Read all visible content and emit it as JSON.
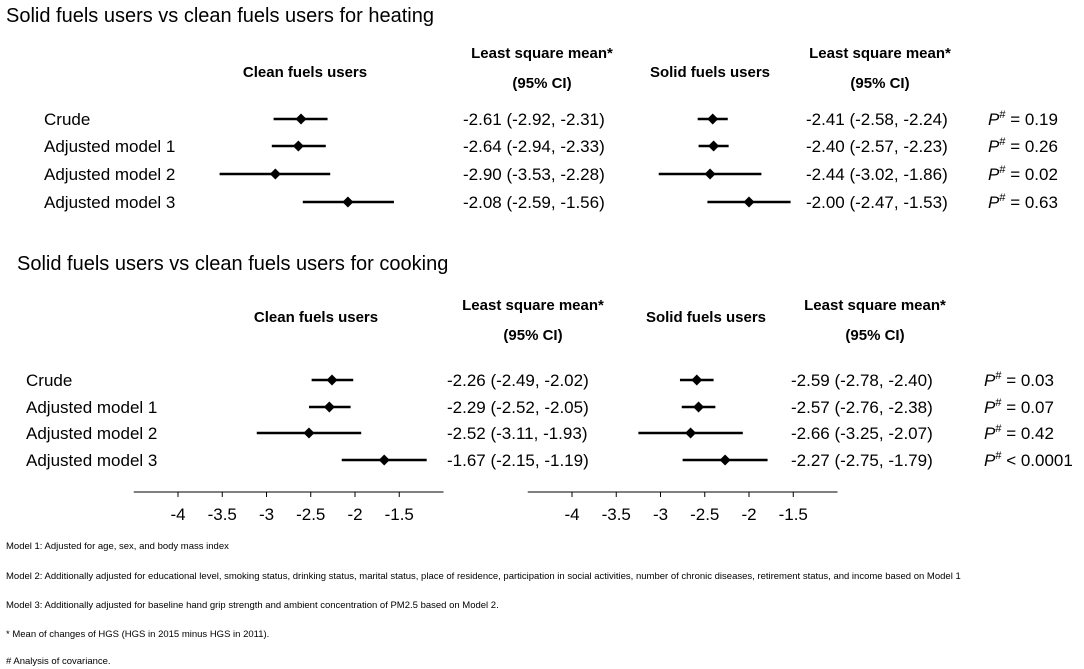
{
  "chart_data": {
    "type": "forest",
    "xlim": [
      -4.5,
      -1.0
    ],
    "xticks": [
      "-4",
      "-3.5",
      "-3",
      "-2.5",
      "-2",
      "-1.5"
    ],
    "xtick_values": [
      -4,
      -3.5,
      -3,
      -2.5,
      -2,
      -1.5
    ],
    "panels": [
      {
        "title": "Solid fuels users vs clean fuels users for heating",
        "headers": {
          "group1": "Clean fuels users",
          "lsm": "Least square mean*",
          "ci": "(95% CI)",
          "group2": "Solid fuels users"
        },
        "rows": [
          {
            "label": "Crude",
            "g1": {
              "mean": -2.61,
              "lo": -2.92,
              "hi": -2.31,
              "text": "-2.61 (-2.92, -2.31)"
            },
            "g2": {
              "mean": -2.41,
              "lo": -2.58,
              "hi": -2.24,
              "text": "-2.41 (-2.58, -2.24)"
            },
            "p_sym": "P",
            "p_sup": "#",
            "p_val": " = 0.19"
          },
          {
            "label": "Adjusted model 1",
            "g1": {
              "mean": -2.64,
              "lo": -2.94,
              "hi": -2.33,
              "text": "-2.64 (-2.94, -2.33)"
            },
            "g2": {
              "mean": -2.4,
              "lo": -2.57,
              "hi": -2.23,
              "text": "-2.40 (-2.57, -2.23)"
            },
            "p_sym": "P",
            "p_sup": "#",
            "p_val": " = 0.26"
          },
          {
            "label": "Adjusted model 2",
            "g1": {
              "mean": -2.9,
              "lo": -3.53,
              "hi": -2.28,
              "text": "-2.90 (-3.53, -2.28)"
            },
            "g2": {
              "mean": -2.44,
              "lo": -3.02,
              "hi": -1.86,
              "text": "-2.44 (-3.02, -1.86)"
            },
            "p_sym": "P",
            "p_sup": "#",
            "p_val": " = 0.02"
          },
          {
            "label": "Adjusted model 3",
            "g1": {
              "mean": -2.08,
              "lo": -2.59,
              "hi": -1.56,
              "text": "-2.08 (-2.59, -1.56)"
            },
            "g2": {
              "mean": -2.0,
              "lo": -2.47,
              "hi": -1.53,
              "text": "-2.00 (-2.47, -1.53)"
            },
            "p_sym": "P",
            "p_sup": "#",
            "p_val": " = 0.63"
          }
        ]
      },
      {
        "title": "Solid fuels users vs clean fuels users for cooking",
        "headers": {
          "group1": "Clean fuels users",
          "lsm": "Least square mean*",
          "ci": "(95% CI)",
          "group2": "Solid fuels users"
        },
        "rows": [
          {
            "label": "Crude",
            "g1": {
              "mean": -2.26,
              "lo": -2.49,
              "hi": -2.02,
              "text": "-2.26 (-2.49, -2.02)"
            },
            "g2": {
              "mean": -2.59,
              "lo": -2.78,
              "hi": -2.4,
              "text": "-2.59 (-2.78, -2.40)"
            },
            "p_sym": "P",
            "p_sup": "#",
            "p_val": " = 0.03"
          },
          {
            "label": "Adjusted model 1",
            "g1": {
              "mean": -2.29,
              "lo": -2.52,
              "hi": -2.05,
              "text": "-2.29 (-2.52, -2.05)"
            },
            "g2": {
              "mean": -2.57,
              "lo": -2.76,
              "hi": -2.38,
              "text": "-2.57 (-2.76, -2.38)"
            },
            "p_sym": "P",
            "p_sup": "#",
            "p_val": " = 0.07"
          },
          {
            "label": "Adjusted model 2",
            "g1": {
              "mean": -2.52,
              "lo": -3.11,
              "hi": -1.93,
              "text": "-2.52 (-3.11, -1.93)"
            },
            "g2": {
              "mean": -2.66,
              "lo": -3.25,
              "hi": -2.07,
              "text": "-2.66 (-3.25, -2.07)"
            },
            "p_sym": "P",
            "p_sup": "#",
            "p_val": " = 0.42"
          },
          {
            "label": "Adjusted model 3",
            "g1": {
              "mean": -1.67,
              "lo": -2.15,
              "hi": -1.19,
              "text": "-1.67 (-2.15, -1.19)"
            },
            "g2": {
              "mean": -2.27,
              "lo": -2.75,
              "hi": -1.79,
              "text": "-2.27 (-2.75, -1.79)"
            },
            "p_sym": "P",
            "p_sup": "#",
            "p_val": " < 0.0001"
          }
        ]
      }
    ]
  },
  "footnotes": [
    "Model 1: Adjusted for age, sex, and body mass index",
    "Model 2: Additionally adjusted for educational level, smoking status, drinking status, marital status, place of residence, participation in social activities, number of chronic diseases, retirement status, and income based on Model 1",
    "Model 3: Additionally adjusted for baseline hand grip strength and ambient concentration of PM2.5 based on Model 2.",
    "* Mean of changes of HGS (HGS in 2015 minus HGS in 2011).",
    "# Analysis of covariance."
  ]
}
